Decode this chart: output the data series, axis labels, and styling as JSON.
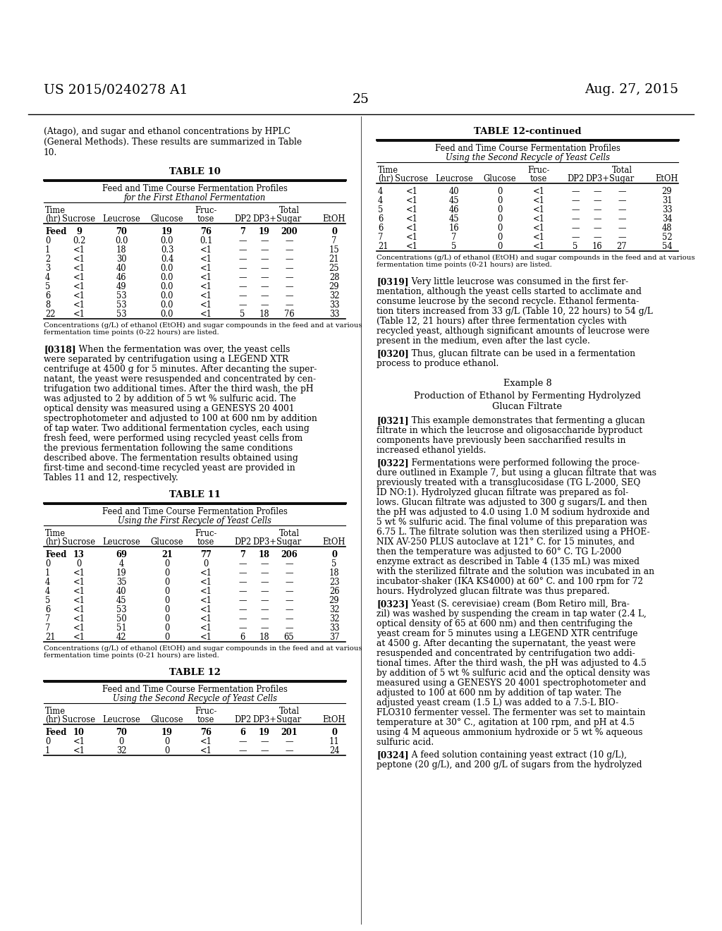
{
  "page_number": "25",
  "patent_number": "US 2015/0240278 A1",
  "patent_date": "Aug. 27, 2015",
  "bg_color": "#ffffff",
  "left_col": {
    "intro_text": "(Atago), and sugar and ethanol concentrations by HPLC\n(General Methods). These results are summarized in Table\n10.",
    "table10": {
      "title": "TABLE 10",
      "subtitle1": "Feed and Time Course Fermentation Profiles",
      "subtitle2": "for the First Ethanol Fermentation",
      "rows": [
        [
          "Feed",
          "9",
          "70",
          "19",
          "76",
          "7",
          "19",
          "200",
          "0"
        ],
        [
          "0",
          "0.2",
          "0.0",
          "0.0",
          "0.1",
          "—",
          "—",
          "—",
          "7"
        ],
        [
          "1",
          "<1",
          "18",
          "0.3",
          "<1",
          "—",
          "—",
          "—",
          "15"
        ],
        [
          "2",
          "<1",
          "30",
          "0.4",
          "<1",
          "—",
          "—",
          "—",
          "21"
        ],
        [
          "3",
          "<1",
          "40",
          "0.0",
          "<1",
          "—",
          "—",
          "—",
          "25"
        ],
        [
          "4",
          "<1",
          "46",
          "0.0",
          "<1",
          "—",
          "—",
          "—",
          "28"
        ],
        [
          "5",
          "<1",
          "49",
          "0.0",
          "<1",
          "—",
          "—",
          "—",
          "29"
        ],
        [
          "6",
          "<1",
          "53",
          "0.0",
          "<1",
          "—",
          "—",
          "—",
          "32"
        ],
        [
          "8",
          "<1",
          "53",
          "0.0",
          "<1",
          "—",
          "—",
          "—",
          "33"
        ],
        [
          "22",
          "<1",
          "53",
          "0.0",
          "<1",
          "5",
          "18",
          "76",
          "33"
        ]
      ],
      "footnote": "Concentrations (g/L) of ethanol (EtOH) and sugar compounds in the feed and at various\nfermentation time points (0-22 hours) are listed."
    },
    "para318_lines": [
      "[0318]   When the fermentation was over, the yeast cells",
      "were separated by centrifugation using a LEGEND XTR",
      "centrifuge at 4500 g for 5 minutes. After decanting the super-",
      "natant, the yeast were resuspended and concentrated by cen-",
      "trifugation two additional times. After the third wash, the pH",
      "was adjusted to 2 by addition of 5 wt % sulfuric acid. The",
      "optical density was measured using a GENESYS 20 4001",
      "spectrophotometer and adjusted to 100 at 600 nm by addition",
      "of tap water. Two additional fermentation cycles, each using",
      "fresh feed, were performed using recycled yeast cells from",
      "the previous fermentation following the same conditions",
      "described above. The fermentation results obtained using",
      "first-time and second-time recycled yeast are provided in",
      "Tables 11 and 12, respectively."
    ],
    "table11": {
      "title": "TABLE 11",
      "subtitle1": "Feed and Time Course Fermentation Profiles",
      "subtitle2": "Using the First Recycle of Yeast Cells",
      "rows": [
        [
          "Feed",
          "13",
          "69",
          "21",
          "77",
          "7",
          "18",
          "206",
          "0"
        ],
        [
          "0",
          "0",
          "4",
          "0",
          "0",
          "—",
          "—",
          "—",
          "5"
        ],
        [
          "1",
          "<1",
          "19",
          "0",
          "<1",
          "—",
          "—",
          "—",
          "18"
        ],
        [
          "4",
          "<1",
          "35",
          "0",
          "<1",
          "—",
          "—",
          "—",
          "23"
        ],
        [
          "4",
          "<1",
          "40",
          "0",
          "<1",
          "—",
          "—",
          "—",
          "26"
        ],
        [
          "5",
          "<1",
          "45",
          "0",
          "<1",
          "—",
          "—",
          "—",
          "29"
        ],
        [
          "6",
          "<1",
          "53",
          "0",
          "<1",
          "—",
          "—",
          "—",
          "32"
        ],
        [
          "7",
          "<1",
          "50",
          "0",
          "<1",
          "—",
          "—",
          "—",
          "32"
        ],
        [
          "7",
          "<1",
          "51",
          "0",
          "<1",
          "—",
          "—",
          "—",
          "33"
        ],
        [
          "21",
          "<1",
          "42",
          "0",
          "<1",
          "6",
          "18",
          "65",
          "37"
        ]
      ],
      "footnote": "Concentrations (g/L) of ethanol (EtOH) and sugar compounds in the feed and at various\nfermentation time points (0-21 hours) are listed."
    },
    "table12": {
      "title": "TABLE 12",
      "subtitle1": "Feed and Time Course Fermentation Profiles",
      "subtitle2": "Using the Second Recycle of Yeast Cells",
      "rows": [
        [
          "Feed",
          "10",
          "70",
          "19",
          "76",
          "6",
          "19",
          "201",
          "0"
        ],
        [
          "0",
          "<1",
          "0",
          "0",
          "<1",
          "—",
          "—",
          "—",
          "11"
        ],
        [
          "1",
          "<1",
          "32",
          "0",
          "<1",
          "—",
          "—",
          "—",
          "24"
        ]
      ]
    }
  },
  "right_col": {
    "table12cont": {
      "title": "TABLE 12-continued",
      "subtitle1": "Feed and Time Course Fermentation Profiles",
      "subtitle2": "Using the Second Recycle of Yeast Cells",
      "rows": [
        [
          "4",
          "<1",
          "40",
          "0",
          "<1",
          "—",
          "—",
          "—",
          "29"
        ],
        [
          "4",
          "<1",
          "45",
          "0",
          "<1",
          "—",
          "—",
          "—",
          "31"
        ],
        [
          "5",
          "<1",
          "46",
          "0",
          "<1",
          "—",
          "—",
          "—",
          "33"
        ],
        [
          "6",
          "<1",
          "45",
          "0",
          "<1",
          "—",
          "—",
          "—",
          "34"
        ],
        [
          "6",
          "<1",
          "16",
          "0",
          "<1",
          "—",
          "—",
          "—",
          "48"
        ],
        [
          "7",
          "<1",
          "7",
          "0",
          "<1",
          "—",
          "—",
          "—",
          "52"
        ],
        [
          "21",
          "<1",
          "5",
          "0",
          "<1",
          "5",
          "16",
          "27",
          "54"
        ]
      ],
      "footnote": "Concentrations (g/L) of ethanol (EtOH) and sugar compounds in the feed and at various\nfermentation time points (0-21 hours) are listed."
    },
    "para319_lines": [
      "[0319]   Very little leucrose was consumed in the first fer-",
      "mentation, although the yeast cells started to acclimate and",
      "consume leucrose by the second recycle. Ethanol fermenta-",
      "tion titers increased from 33 g/L (Table 10, 22 hours) to 54 g/L",
      "(Table 12, 21 hours) after three fermentation cycles with",
      "recycled yeast, although significant amounts of leucrose were",
      "present in the medium, even after the last cycle."
    ],
    "para320_lines": [
      "[0320]   Thus, glucan filtrate can be used in a fermentation",
      "process to produce ethanol."
    ],
    "example8_title": "Example 8",
    "example8_subtitle1": "Production of Ethanol by Fermenting Hydrolyzed",
    "example8_subtitle2": "Glucan Filtrate",
    "para321_lines": [
      "[0321]   This example demonstrates that fermenting a glucan",
      "filtrate in which the leucrose and oligosaccharide byproduct",
      "components have previously been saccharified results in",
      "increased ethanol yields."
    ],
    "para322_lines": [
      "[0322]   Fermentations were performed following the proce-",
      "dure outlined in Example 7, but using a glucan filtrate that was",
      "previously treated with a transglucosidase (TG L-2000, SEQ",
      "ID NO:1). Hydrolyzed glucan filtrate was prepared as fol-",
      "lows. Glucan filtrate was adjusted to 300 g sugars/L and then",
      "the pH was adjusted to 4.0 using 1.0 M sodium hydroxide and",
      "5 wt % sulfuric acid. The final volume of this preparation was",
      "6.75 L. The filtrate solution was then sterilized using a PHOE-",
      "NIX AV-250 PLUS autoclave at 121° C. for 15 minutes, and",
      "then the temperature was adjusted to 60° C. TG L-2000",
      "enzyme extract as described in Table 4 (135 mL) was mixed",
      "with the sterilized filtrate and the solution was incubated in an",
      "incubator-shaker (IKA KS4000) at 60° C. and 100 rpm for 72",
      "hours. Hydrolyzed glucan filtrate was thus prepared."
    ],
    "para323_lines": [
      "[0323]   Yeast (S. cerevisiae) cream (Bom Retiro mill, Bra-",
      "zil) was washed by suspending the cream in tap water (2.4 L,",
      "optical density of 65 at 600 nm) and then centrifuging the",
      "yeast cream for 5 minutes using a LEGEND XTR centrifuge",
      "at 4500 g. After decanting the supernatant, the yeast were",
      "resuspended and concentrated by centrifugation two addi-",
      "tional times. After the third wash, the pH was adjusted to 4.5",
      "by addition of 5 wt % sulfuric acid and the optical density was",
      "measured using a GENESYS 20 4001 spectrophotometer and",
      "adjusted to 100 at 600 nm by addition of tap water. The",
      "adjusted yeast cream (1.5 L) was added to a 7.5-L BIO-",
      "FLO310 fermenter vessel. The fermenter was set to maintain",
      "temperature at 30° C., agitation at 100 rpm, and pH at 4.5",
      "using 4 M aqueous ammonium hydroxide or 5 wt % aqueous",
      "sulfuric acid."
    ],
    "para324_lines": [
      "[0324]   A feed solution containing yeast extract (10 g/L),",
      "peptone (20 g/L), and 200 g/L of sugars from the hydrolyzed"
    ]
  }
}
